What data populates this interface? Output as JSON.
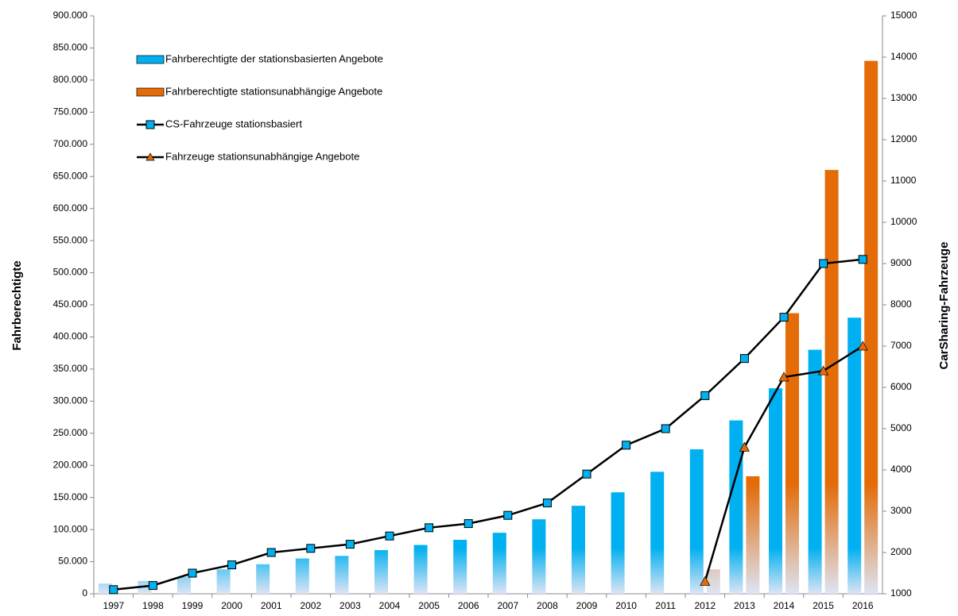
{
  "chart_data": {
    "type": "bar",
    "categories": [
      "1997",
      "1998",
      "1999",
      "2000",
      "2001",
      "2002",
      "2003",
      "2004",
      "2005",
      "2006",
      "2007",
      "2008",
      "2009",
      "2010",
      "2011",
      "2012",
      "2013",
      "2014",
      "2015",
      "2016"
    ],
    "y_label": "Fahrberechtigte",
    "y2_label": "CarSharing-Fahrzeuge",
    "series": [
      {
        "name": "Fahrberechtigte der stationsbasierten Angebote",
        "type": "bar",
        "color": "#00b0f0",
        "values": [
          16000,
          20000,
          26000,
          38000,
          46000,
          55000,
          59000,
          68000,
          76000,
          84000,
          95000,
          116000,
          137000,
          158000,
          190000,
          225000,
          270000,
          320000,
          380000,
          430000
        ]
      },
      {
        "name": "Fahrberechtigte stationsunabhängige Angebote",
        "type": "bar",
        "color": "#e36c09",
        "values": [
          null,
          null,
          null,
          null,
          null,
          null,
          null,
          null,
          null,
          null,
          null,
          null,
          null,
          null,
          null,
          38000,
          183000,
          437000,
          660000,
          830000
        ]
      },
      {
        "name": "CS-Fahrzeuge stationsbasiert",
        "type": "line",
        "axis": "y2",
        "color": "#000000",
        "marker": "square",
        "marker_color": "#00b0f0",
        "values": [
          1100,
          1200,
          1500,
          1700,
          2000,
          2100,
          2200,
          2400,
          2600,
          2700,
          2900,
          3200,
          3900,
          4600,
          5000,
          5800,
          6700,
          7700,
          9000,
          9100
        ]
      },
      {
        "name": "Fahrzeuge stationsunabhängige Angebote",
        "type": "line",
        "axis": "y2",
        "color": "#000000",
        "marker": "triangle",
        "marker_color": "#e36c09",
        "values": [
          null,
          null,
          null,
          null,
          null,
          null,
          null,
          null,
          null,
          null,
          null,
          null,
          null,
          null,
          null,
          1300,
          4550,
          6250,
          6400,
          7000
        ]
      }
    ],
    "ylim": [
      0,
      900000
    ],
    "yticks": [
      {
        "value": 0,
        "label": "0"
      },
      {
        "value": 50000,
        "label": "50.000"
      },
      {
        "value": 100000,
        "label": "100.000"
      },
      {
        "value": 150000,
        "label": "150.000"
      },
      {
        "value": 200000,
        "label": "200.000"
      },
      {
        "value": 250000,
        "label": "250.000"
      },
      {
        "value": 300000,
        "label": "300.000"
      },
      {
        "value": 350000,
        "label": "350.000"
      },
      {
        "value": 400000,
        "label": "400.000"
      },
      {
        "value": 450000,
        "label": "450.000"
      },
      {
        "value": 500000,
        "label": "500.000"
      },
      {
        "value": 550000,
        "label": "550.000"
      },
      {
        "value": 600000,
        "label": "600.000"
      },
      {
        "value": 650000,
        "label": "650.000"
      },
      {
        "value": 700000,
        "label": "700.000"
      },
      {
        "value": 750000,
        "label": "750.000"
      },
      {
        "value": 800000,
        "label": "800.000"
      },
      {
        "value": 850000,
        "label": "850.000"
      },
      {
        "value": 900000,
        "label": "900.000"
      }
    ],
    "y2lim": [
      1000,
      15000
    ],
    "y2ticks": [
      1000,
      2000,
      3000,
      4000,
      5000,
      6000,
      7000,
      8000,
      9000,
      10000,
      11000,
      12000,
      13000,
      14000,
      15000
    ],
    "legend": "upper left",
    "grid": false
  }
}
